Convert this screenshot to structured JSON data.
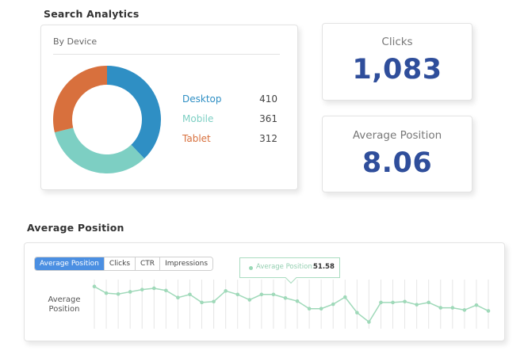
{
  "search_analytics": {
    "title": "Search Analytics",
    "by_device": {
      "title": "By Device",
      "items": [
        {
          "label": "Desktop",
          "value": "410",
          "color": "#2f8fc4"
        },
        {
          "label": "Mobile",
          "value": "361",
          "color": "#7dcfc3"
        },
        {
          "label": "Tablet",
          "value": "312",
          "color": "#d8703d"
        }
      ]
    },
    "clicks": {
      "label": "Clicks",
      "value": "1,083"
    },
    "average_position": {
      "label": "Average Position",
      "value": "8.06"
    }
  },
  "average_position_section": {
    "title": "Average Position",
    "tabs": [
      {
        "label": "Average Position",
        "active": true
      },
      {
        "label": "Clicks",
        "active": false
      },
      {
        "label": "CTR",
        "active": false
      },
      {
        "label": "Impressions",
        "active": false
      }
    ],
    "tooltip": {
      "label": "Average Position:",
      "value": "51.58"
    },
    "y_axis_label_line1": "Average",
    "y_axis_label_line2": "Position"
  },
  "chart_data": [
    {
      "type": "pie",
      "title": "By Device",
      "categories": [
        "Desktop",
        "Mobile",
        "Tablet"
      ],
      "values": [
        410,
        361,
        312
      ],
      "colors": [
        "#2f8fc4",
        "#7dcfc3",
        "#d8703d"
      ]
    },
    {
      "type": "line",
      "title": "Average Position",
      "ylabel": "Average Position",
      "line_color": "#9fd9b9",
      "series": [
        {
          "name": "Average Position",
          "values": [
            52.8,
            51.3,
            51.1,
            51.6,
            52.1,
            52.4,
            51.9,
            50.3,
            51.0,
            49.2,
            49.4,
            51.8,
            51.0,
            49.8,
            51.0,
            51.0,
            50.2,
            49.5,
            47.8,
            47.8,
            48.8,
            50.4,
            46.9,
            44.8,
            49.2,
            49.2,
            49.4,
            48.7,
            49.2,
            48.0,
            48.0,
            47.5,
            48.6,
            47.3
          ]
        }
      ]
    }
  ]
}
